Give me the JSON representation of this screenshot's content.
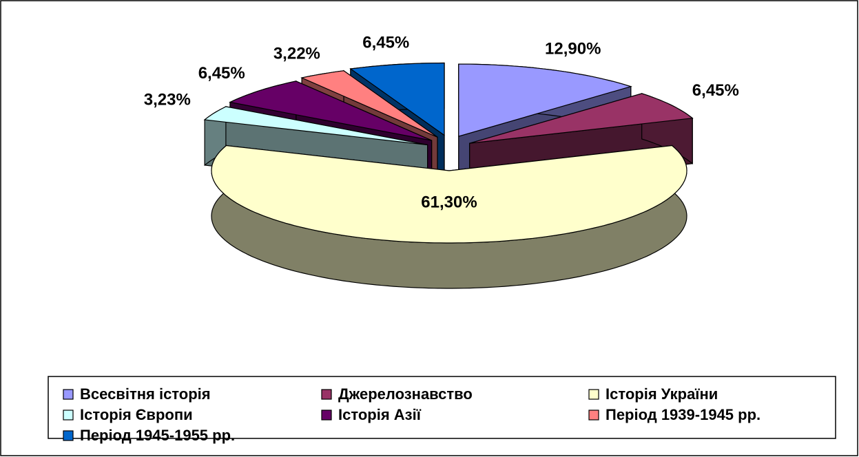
{
  "chart_data": {
    "type": "pie3d",
    "categories": [
      "Всесвітня історія",
      "Джерелознавство",
      "Історія України",
      "Історія Європи",
      "Історія Азії",
      "Період 1939-1945 рр.",
      "Період 1945-1955 рр."
    ],
    "values": [
      12.9,
      6.45,
      61.3,
      3.23,
      6.45,
      3.22,
      6.45
    ],
    "value_labels": [
      "12,90%",
      "6,45%",
      "61,30%",
      "3,23%",
      "6,45%",
      "3,22%",
      "6,45%"
    ],
    "colors": [
      "#9999ff",
      "#993366",
      "#ffffcc",
      "#ccffff",
      "#660066",
      "#ff8080",
      "#0066cc"
    ],
    "legend": "bottom"
  }
}
